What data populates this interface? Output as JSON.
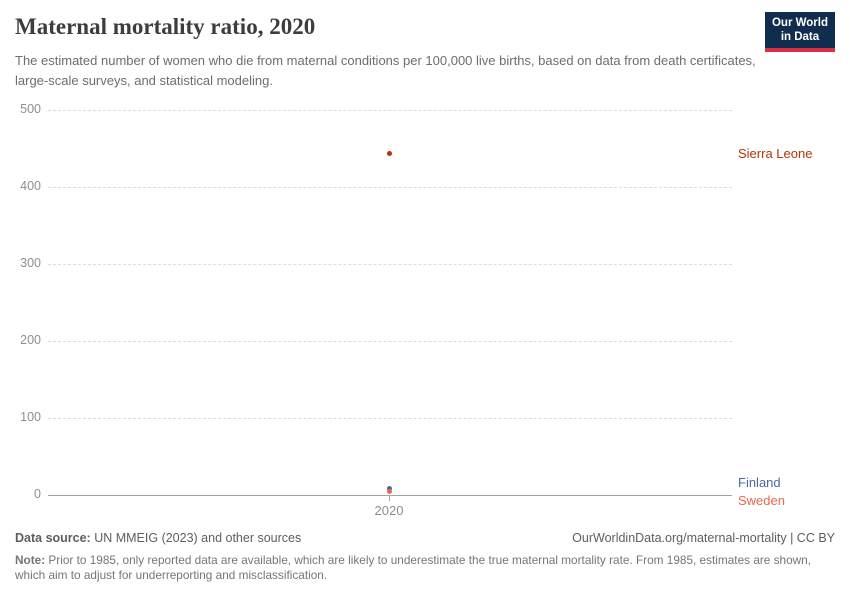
{
  "header": {
    "title": "Maternal mortality ratio, 2020",
    "subtitle": "The estimated number of women who die from maternal conditions per 100,000 live births, based on data from death certificates, large-scale surveys, and statistical modeling.",
    "logo": {
      "line1": "Our World",
      "line2": "in Data",
      "bg_color": "#102d50",
      "accent_color": "#dc2e44"
    }
  },
  "chart_data": {
    "type": "scatter",
    "title": "Maternal mortality ratio, 2020",
    "x": [
      2020
    ],
    "x_tick_label": "2020",
    "xlabel": "",
    "ylabel": "",
    "ylim": [
      0,
      500
    ],
    "yticks": [
      0,
      100,
      200,
      300,
      400,
      500
    ],
    "grid": "horizontal-dashed",
    "legend_position": "right-entity-labels",
    "series": [
      {
        "name": "Sierra Leone",
        "x": 2020,
        "value": 443,
        "color": "#b13507",
        "label_offset": 0
      },
      {
        "name": "Finland",
        "x": 2020,
        "value": 8,
        "color": "#4c6a9c",
        "label_offset": -6
      },
      {
        "name": "Sweden",
        "x": 2020,
        "value": 5,
        "color": "#e8684f",
        "label_offset": 9
      }
    ]
  },
  "footer": {
    "source_label": "Data source:",
    "source_text": " UN MMEIG (2023) and other sources",
    "link_text": "OurWorldinData.org/maternal-mortality | CC BY",
    "note_label": "Note:",
    "note_text": " Prior to 1985, only reported data are available, which are likely to underestimate the true maternal mortality rate. From 1985, estimates are shown, which aim to adjust for underreporting and misclassification."
  }
}
